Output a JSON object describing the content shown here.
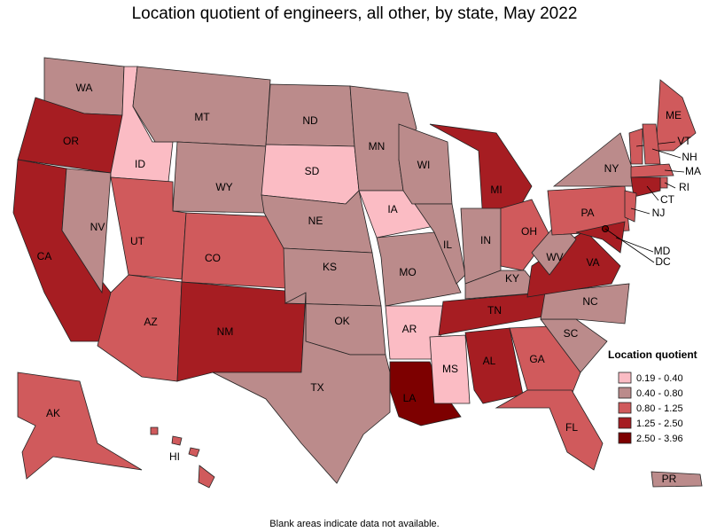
{
  "title": "Location quotient of engineers, all other, by state, May 2022",
  "legend": {
    "title": "Location quotient",
    "items": [
      {
        "label": "0.19 - 0.40",
        "color": "#fbbcc4"
      },
      {
        "label": "0.40 - 0.80",
        "color": "#bb8b8b"
      },
      {
        "label": "0.80 - 1.25",
        "color": "#d05a5c"
      },
      {
        "label": "1.25 - 2.50",
        "color": "#a61d22"
      },
      {
        "label": "2.50 - 3.96",
        "color": "#7d0000"
      }
    ]
  },
  "states": [
    {
      "label": "WA",
      "class": 1
    },
    {
      "label": "OR",
      "class": 3
    },
    {
      "label": "CA",
      "class": 3
    },
    {
      "label": "NV",
      "class": 1
    },
    {
      "label": "ID",
      "class": 0
    },
    {
      "label": "MT",
      "class": 1
    },
    {
      "label": "WY",
      "class": 1
    },
    {
      "label": "UT",
      "class": 2
    },
    {
      "label": "CO",
      "class": 2
    },
    {
      "label": "AZ",
      "class": 2
    },
    {
      "label": "NM",
      "class": 3
    },
    {
      "label": "ND",
      "class": 1
    },
    {
      "label": "SD",
      "class": 0
    },
    {
      "label": "NE",
      "class": 1
    },
    {
      "label": "KS",
      "class": 1
    },
    {
      "label": "OK",
      "class": 1
    },
    {
      "label": "TX",
      "class": 1
    },
    {
      "label": "MN",
      "class": 1
    },
    {
      "label": "IA",
      "class": 0
    },
    {
      "label": "MO",
      "class": 1
    },
    {
      "label": "AR",
      "class": 0
    },
    {
      "label": "LA",
      "class": 4
    },
    {
      "label": "WI",
      "class": 1
    },
    {
      "label": "IL",
      "class": 1
    },
    {
      "label": "MI",
      "class": 3
    },
    {
      "label": "IN",
      "class": 1
    },
    {
      "label": "OH",
      "class": 2
    },
    {
      "label": "KY",
      "class": 1
    },
    {
      "label": "TN",
      "class": 3
    },
    {
      "label": "MS",
      "class": 0
    },
    {
      "label": "AL",
      "class": 3
    },
    {
      "label": "GA",
      "class": 2
    },
    {
      "label": "FL",
      "class": 2
    },
    {
      "label": "SC",
      "class": 1
    },
    {
      "label": "NC",
      "class": 1
    },
    {
      "label": "VA",
      "class": 3
    },
    {
      "label": "WV",
      "class": 1
    },
    {
      "label": "PA",
      "class": 2
    },
    {
      "label": "NY",
      "class": 1
    },
    {
      "label": "ME",
      "class": 2
    },
    {
      "label": "VT",
      "class": 2
    },
    {
      "label": "NH",
      "class": 2
    },
    {
      "label": "MA",
      "class": 2
    },
    {
      "label": "RI",
      "class": 2
    },
    {
      "label": "CT",
      "class": 3
    },
    {
      "label": "NJ",
      "class": 2
    },
    {
      "label": "MD",
      "class": 3
    },
    {
      "label": "DC",
      "class": 4
    },
    {
      "label": "AK",
      "class": 2
    },
    {
      "label": "HI",
      "class": 2
    },
    {
      "label": "PR",
      "class": 1
    }
  ],
  "footnote": "Blank areas indicate data not available."
}
